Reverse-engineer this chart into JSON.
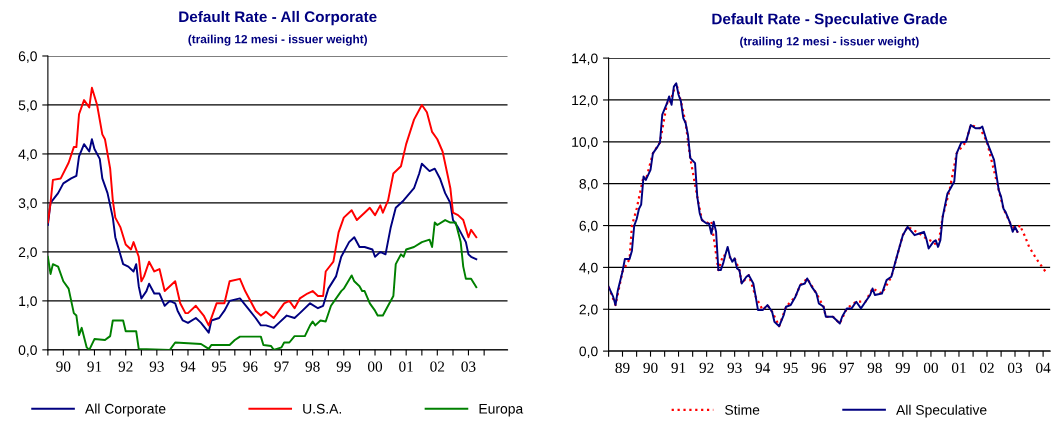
{
  "chart_data": [
    {
      "type": "line",
      "title": "Default Rate - All Corporate",
      "subtitle": "(trailing 12 mesi - issuer weight)",
      "xlim": [
        "1990-01",
        "2004-10"
      ],
      "ylim": [
        0,
        6
      ],
      "yticks": [
        {
          "value": 0,
          "label": "0,0"
        },
        {
          "value": 1,
          "label": "1,0"
        },
        {
          "value": 2,
          "label": "2,0"
        },
        {
          "value": 3,
          "label": "3,0"
        },
        {
          "value": 4,
          "label": "4,0"
        },
        {
          "value": 5,
          "label": "5,0"
        },
        {
          "value": 6,
          "label": "6,0"
        }
      ],
      "xticks": [
        {
          "value": "1990",
          "label": null
        },
        {
          "value": "1990-07",
          "label": "90"
        },
        {
          "value": "1991",
          "label": null
        },
        {
          "value": "1991-07",
          "label": "91"
        },
        {
          "value": "1992",
          "label": null
        },
        {
          "value": "1992-07",
          "label": "92"
        },
        {
          "value": "1993",
          "label": null
        },
        {
          "value": "1993-07",
          "label": "93"
        },
        {
          "value": "1994",
          "label": null
        },
        {
          "value": "1994-07",
          "label": "94"
        },
        {
          "value": "1995",
          "label": null
        },
        {
          "value": "1995-07",
          "label": "95"
        },
        {
          "value": "1996",
          "label": null
        },
        {
          "value": "1996-07",
          "label": "96"
        },
        {
          "value": "1997",
          "label": null
        },
        {
          "value": "1997-07",
          "label": "97"
        },
        {
          "value": "1998",
          "label": null
        },
        {
          "value": "1998-07",
          "label": "98"
        },
        {
          "value": "1999",
          "label": null
        },
        {
          "value": "1999-07",
          "label": "99"
        },
        {
          "value": "2000",
          "label": null
        },
        {
          "value": "2000-07",
          "label": "00"
        },
        {
          "value": "2001",
          "label": null
        },
        {
          "value": "2001-07",
          "label": "01"
        },
        {
          "value": "2002",
          "label": null
        },
        {
          "value": "2002-07",
          "label": "02"
        },
        {
          "value": "2003",
          "label": null
        },
        {
          "value": "2003-07",
          "label": "03"
        },
        {
          "value": "2004",
          "label": null
        }
      ],
      "grid": "y",
      "legend": "bottom",
      "series": [
        {
          "name": "All Corporate",
          "color": "#000080",
          "line_style": "solid",
          "x": [
            "1990-01",
            "1990-02",
            "1990-05",
            "1990-07",
            "1990-10",
            "1990-12",
            "1991-01",
            "1991-03",
            "1991-05",
            "1991-06",
            "1991-07",
            "1991-09",
            "1991-10",
            "1991-12",
            "1992-02",
            "1992-03",
            "1992-06",
            "1992-08",
            "1992-10",
            "1992-11",
            "1992-12",
            "1993-01",
            "1993-03",
            "1993-04",
            "1993-06",
            "1993-08",
            "1993-10",
            "1993-12",
            "1994-02",
            "1994-03",
            "1994-05",
            "1994-07",
            "1994-10",
            "1994-12",
            "1995-03",
            "1995-04",
            "1995-07",
            "1995-09",
            "1995-11",
            "1996-03",
            "1996-06",
            "1996-09",
            "1996-11",
            "1997-01",
            "1997-04",
            "1997-06",
            "1997-09",
            "1997-12",
            "1998-02",
            "1998-06",
            "1998-09",
            "1998-11",
            "1999-01",
            "1999-04",
            "1999-06",
            "1999-09",
            "1999-11",
            "2000-01",
            "2000-03",
            "2000-06",
            "2000-07",
            "2000-09",
            "2000-11",
            "2001-01",
            "2001-03",
            "2001-06",
            "2001-10",
            "2001-12",
            "2002-01",
            "2002-04",
            "2002-06",
            "2002-08",
            "2002-10",
            "2002-12",
            "2003-01",
            "2003-03",
            "2003-06",
            "2003-07",
            "2003-08",
            "2003-10"
          ],
          "values": [
            2.55,
            3.0,
            3.2,
            3.4,
            3.5,
            3.55,
            3.95,
            4.2,
            4.05,
            4.3,
            4.1,
            3.9,
            3.5,
            3.2,
            2.7,
            2.3,
            1.75,
            1.7,
            1.6,
            1.75,
            1.3,
            1.05,
            1.2,
            1.35,
            1.15,
            1.15,
            0.9,
            1.0,
            0.95,
            0.8,
            0.6,
            0.55,
            0.65,
            0.55,
            0.35,
            0.6,
            0.65,
            0.8,
            1.0,
            1.05,
            0.85,
            0.65,
            0.5,
            0.5,
            0.45,
            0.55,
            0.7,
            0.65,
            0.75,
            0.95,
            0.85,
            0.9,
            1.25,
            1.5,
            1.9,
            2.2,
            2.3,
            2.1,
            2.1,
            2.05,
            1.9,
            2.0,
            1.95,
            2.5,
            2.9,
            3.05,
            3.3,
            3.6,
            3.8,
            3.65,
            3.7,
            3.5,
            3.2,
            3.0,
            2.65,
            2.5,
            2.2,
            1.95,
            1.9,
            1.85
          ]
        },
        {
          "name": "U.S.A.",
          "color": "#ff0000",
          "line_style": "solid",
          "x": [
            "1990-01",
            "1990-02",
            "1990-03",
            "1990-06",
            "1990-09",
            "1990-11",
            "1990-12",
            "1991-01",
            "1991-03",
            "1991-05",
            "1991-06",
            "1991-08",
            "1991-10",
            "1991-11",
            "1992-01",
            "1992-02",
            "1992-03",
            "1992-05",
            "1992-07",
            "1992-09",
            "1992-10",
            "1992-12",
            "1993-01",
            "1993-02",
            "1993-04",
            "1993-06",
            "1993-08",
            "1993-10",
            "1994-02",
            "1994-04",
            "1994-06",
            "1994-07",
            "1994-10",
            "1995-01",
            "1995-03",
            "1995-06",
            "1995-09",
            "1995-11",
            "1996-03",
            "1996-05",
            "1996-09",
            "1996-11",
            "1997-01",
            "1997-04",
            "1997-06",
            "1997-08",
            "1997-10",
            "1997-12",
            "1998-02",
            "1998-05",
            "1998-07",
            "1998-09",
            "1998-11",
            "1998-12",
            "1999-03",
            "1999-05",
            "1999-07",
            "1999-10",
            "1999-12",
            "2000-03",
            "2000-05",
            "2000-07",
            "2000-09",
            "2000-10",
            "2000-12",
            "2001-02",
            "2001-05",
            "2001-07",
            "2001-10",
            "2002-01",
            "2002-03",
            "2002-05",
            "2002-07",
            "2002-09",
            "2002-11",
            "2002-12",
            "2003-01",
            "2003-03",
            "2003-05",
            "2003-07",
            "2003-08",
            "2003-10"
          ],
          "values": [
            2.6,
            3.0,
            3.47,
            3.5,
            3.82,
            4.14,
            4.14,
            4.81,
            5.1,
            4.95,
            5.35,
            5.0,
            4.4,
            4.3,
            3.7,
            3.05,
            2.7,
            2.5,
            2.15,
            2.05,
            2.2,
            1.9,
            1.4,
            1.5,
            1.8,
            1.6,
            1.65,
            1.2,
            1.4,
            0.95,
            0.75,
            0.75,
            0.9,
            0.7,
            0.5,
            0.95,
            0.95,
            1.4,
            1.45,
            1.2,
            0.8,
            0.7,
            0.78,
            0.65,
            0.8,
            0.95,
            1.0,
            0.85,
            1.05,
            1.15,
            1.2,
            1.1,
            1.1,
            1.6,
            1.8,
            2.4,
            2.7,
            2.85,
            2.65,
            2.8,
            2.9,
            2.75,
            2.95,
            2.8,
            3.05,
            3.6,
            3.75,
            4.2,
            4.7,
            5.0,
            4.85,
            4.45,
            4.3,
            4.05,
            3.55,
            3.3,
            2.8,
            2.75,
            2.65,
            2.3,
            2.45,
            2.3
          ]
        },
        {
          "name": "Europa",
          "color": "#008000",
          "line_style": "solid",
          "x": [
            "1990-01",
            "1990-02",
            "1990-03",
            "1990-05",
            "1990-07",
            "1990-09",
            "1990-11",
            "1990-12",
            "1991-01",
            "1991-02",
            "1991-04",
            "1991-05",
            "1991-07",
            "1991-11",
            "1992-01",
            "1992-02",
            "1992-06",
            "1992-07",
            "1992-11",
            "1992-12",
            "1993-12",
            "1994-02",
            "1994-12",
            "1995-03",
            "1995-04",
            "1995-11",
            "1996-01",
            "1996-03",
            "1996-11",
            "1996-12",
            "1997-03",
            "1997-04",
            "1997-07",
            "1997-08",
            "1997-10",
            "1997-12",
            "1998-04",
            "1998-06",
            "1998-07",
            "1998-08",
            "1998-10",
            "1998-12",
            "1999-02",
            "1999-06",
            "1999-07",
            "1999-10",
            "1999-11",
            "2000-01",
            "2000-02",
            "2000-03",
            "2000-05",
            "2000-07",
            "2000-08",
            "2000-10",
            "2000-12",
            "2001-02",
            "2001-03",
            "2001-05",
            "2001-06",
            "2001-07",
            "2001-10",
            "2002-01",
            "2002-04",
            "2002-05",
            "2002-06",
            "2002-07",
            "2002-10",
            "2002-12",
            "2003-02",
            "2003-04",
            "2003-05",
            "2003-06",
            "2003-08",
            "2003-10"
          ],
          "values": [
            1.9,
            1.55,
            1.75,
            1.7,
            1.4,
            1.25,
            0.75,
            0.7,
            0.3,
            0.45,
            0.05,
            0.0,
            0.22,
            0.2,
            0.28,
            0.6,
            0.6,
            0.38,
            0.38,
            0.02,
            0.0,
            0.15,
            0.12,
            0.02,
            0.1,
            0.1,
            0.2,
            0.27,
            0.27,
            0.1,
            0.08,
            0.0,
            0.05,
            0.15,
            0.15,
            0.28,
            0.28,
            0.5,
            0.58,
            0.5,
            0.6,
            0.58,
            0.9,
            1.2,
            1.25,
            1.52,
            1.4,
            1.3,
            1.2,
            1.2,
            0.95,
            0.8,
            0.7,
            0.7,
            0.9,
            1.1,
            1.75,
            1.95,
            1.9,
            2.05,
            2.1,
            2.2,
            2.25,
            2.1,
            2.6,
            2.55,
            2.65,
            2.6,
            2.6,
            2.2,
            1.7,
            1.45,
            1.45,
            1.28
          ]
        }
      ]
    },
    {
      "type": "line",
      "title": "Default Rate - Speculative Grade",
      "subtitle": "(trailing 12 mesi - issuer weight)",
      "xlim": [
        "1989-01",
        "2004-10"
      ],
      "ylim": [
        0,
        14
      ],
      "yticks": [
        {
          "value": 0,
          "label": "0,0"
        },
        {
          "value": 2,
          "label": "2,0"
        },
        {
          "value": 4,
          "label": "4,0"
        },
        {
          "value": 6,
          "label": "6,0"
        },
        {
          "value": 8,
          "label": "8,0"
        },
        {
          "value": 10,
          "label": "10,0"
        },
        {
          "value": 12,
          "label": "12,0"
        },
        {
          "value": 14,
          "label": "14,0"
        }
      ],
      "xticks": [
        {
          "value": "1989",
          "label": null
        },
        {
          "value": "1989-07",
          "label": "89"
        },
        {
          "value": "1990",
          "label": null
        },
        {
          "value": "1990-07",
          "label": "90"
        },
        {
          "value": "1991",
          "label": null
        },
        {
          "value": "1991-07",
          "label": "91"
        },
        {
          "value": "1992",
          "label": null
        },
        {
          "value": "1992-07",
          "label": "92"
        },
        {
          "value": "1993",
          "label": null
        },
        {
          "value": "1993-07",
          "label": "93"
        },
        {
          "value": "1994",
          "label": null
        },
        {
          "value": "1994-07",
          "label": "94"
        },
        {
          "value": "1995",
          "label": null
        },
        {
          "value": "1995-07",
          "label": "95"
        },
        {
          "value": "1996",
          "label": null
        },
        {
          "value": "1996-07",
          "label": "96"
        },
        {
          "value": "1997",
          "label": null
        },
        {
          "value": "1997-07",
          "label": "97"
        },
        {
          "value": "1998",
          "label": null
        },
        {
          "value": "1998-07",
          "label": "98"
        },
        {
          "value": "1999",
          "label": null
        },
        {
          "value": "1999-07",
          "label": "99"
        },
        {
          "value": "2000",
          "label": null
        },
        {
          "value": "2000-07",
          "label": "00"
        },
        {
          "value": "2001",
          "label": null
        },
        {
          "value": "2001-07",
          "label": "01"
        },
        {
          "value": "2002",
          "label": null
        },
        {
          "value": "2002-07",
          "label": "02"
        },
        {
          "value": "2003",
          "label": null
        },
        {
          "value": "2003-07",
          "label": "03"
        },
        {
          "value": "2004",
          "label": null
        },
        {
          "value": "2004-07",
          "label": "04"
        }
      ],
      "grid": "y",
      "legend": "bottom",
      "series": [
        {
          "name": "Stime",
          "color": "#ff0000",
          "line_style": "dotted",
          "x": [
            "1989-01",
            "1989-04",
            "1989-07",
            "1989-10",
            "1989-11",
            "1990-01",
            "1990-04",
            "1990-05",
            "1990-08",
            "1990-11",
            "1991-02",
            "1991-03",
            "1991-06",
            "1991-08",
            "1991-10",
            "1991-12",
            "1992-03",
            "1992-05",
            "1992-08",
            "1992-09",
            "1992-12",
            "1993-02",
            "1993-04",
            "1993-07",
            "1993-09",
            "1993-10",
            "1994-01",
            "1994-04",
            "1994-07",
            "1994-09",
            "1994-11",
            "1995-02",
            "1995-05",
            "1995-09",
            "1995-11",
            "1996-02",
            "1996-06",
            "1996-09",
            "1996-10",
            "1997-01",
            "1997-04",
            "1997-07",
            "1997-11",
            "1998-03",
            "1998-06",
            "1998-10",
            "1999-02",
            "1999-07",
            "1999-09",
            "2000-02",
            "2000-05",
            "2000-08",
            "2000-10",
            "2000-12",
            "2001-03",
            "2001-06",
            "2001-10",
            "2001-12",
            "2002-04",
            "2002-07",
            "2002-12",
            "2003-02",
            "2003-05",
            "2003-08",
            "2003-09",
            "2003-11",
            "2004-01",
            "2004-04",
            "2004-06",
            "2004-08"
          ],
          "values": [
            3.07,
            2.2,
            3.8,
            4.4,
            6.0,
            6.8,
            8.34,
            8.18,
            9.45,
            9.97,
            11.85,
            11.77,
            12.8,
            11.93,
            10.9,
            9.22,
            7.38,
            6.26,
            6.1,
            6.18,
            3.87,
            4.59,
            4.5,
            4.43,
            3.87,
            3.23,
            3.63,
            2.6,
            1.96,
            2.2,
            1.88,
            1.19,
            2.12,
            2.6,
            3.15,
            3.47,
            2.75,
            2.12,
            1.64,
            1.64,
            1.32,
            2.04,
            2.36,
            2.36,
            2.99,
            2.75,
            3.55,
            5.54,
            5.94,
            5.62,
            5.38,
            5.22,
            4.98,
            6.42,
            7.7,
            9.45,
            10.0,
            10.8,
            10.65,
            10.0,
            7.7,
            6.8,
            6.1,
            5.7,
            6.02,
            5.54,
            4.98,
            4.43,
            4.11,
            3.8
          ]
        },
        {
          "name": "All Speculative",
          "color": "#000080",
          "line_style": "solid",
          "x": [
            "1989-01",
            "1989-03",
            "1989-04",
            "1989-05",
            "1989-07",
            "1989-08",
            "1989-10",
            "1989-11",
            "1989-12",
            "1990-01",
            "1990-02",
            "1990-03",
            "1990-04",
            "1990-05",
            "1990-07",
            "1990-08",
            "1990-10",
            "1990-11",
            "1990-12",
            "1991-02",
            "1991-03",
            "1991-04",
            "1991-05",
            "1991-06",
            "1991-07",
            "1991-08",
            "1991-09",
            "1991-10",
            "1991-11",
            "1991-12",
            "1992-02",
            "1992-03",
            "1992-04",
            "1992-05",
            "1992-07",
            "1992-08",
            "1992-09",
            "1992-10",
            "1992-11",
            "1992-12",
            "1993-01",
            "1993-02",
            "1993-03",
            "1993-04",
            "1993-05",
            "1993-06",
            "1993-07",
            "1993-08",
            "1993-09",
            "1993-10",
            "1993-12",
            "1994-01",
            "1994-03",
            "1994-04",
            "1994-05",
            "1994-07",
            "1994-09",
            "1994-11",
            "1994-12",
            "1995-02",
            "1995-04",
            "1995-05",
            "1995-07",
            "1995-09",
            "1995-11",
            "1996-01",
            "1996-02",
            "1996-04",
            "1996-06",
            "1996-07",
            "1996-09",
            "1996-10",
            "1997-01",
            "1997-04",
            "1997-05",
            "1997-07",
            "1997-09",
            "1997-11",
            "1998-01",
            "1998-03",
            "1998-05",
            "1998-06",
            "1998-07",
            "1998-10",
            "1998-12",
            "1999-02",
            "1999-05",
            "1999-07",
            "1999-09",
            "1999-12",
            "2000-02",
            "2000-04",
            "2000-05",
            "2000-06",
            "2000-08",
            "2000-09",
            "2000-10",
            "2000-11",
            "2000-12",
            "2001-02",
            "2001-03",
            "2001-05",
            "2001-06",
            "2001-08",
            "2001-10",
            "2001-12",
            "2002-02",
            "2002-04",
            "2002-05",
            "2002-07",
            "2002-10",
            "2002-12",
            "2003-01",
            "2003-02",
            "2003-03",
            "2003-05",
            "2003-06",
            "2003-07",
            "2003-08"
          ],
          "values": [
            3.07,
            2.6,
            2.2,
            2.9,
            3.8,
            4.4,
            4.4,
            4.8,
            6.0,
            6.3,
            6.8,
            7.0,
            8.34,
            8.18,
            8.66,
            9.45,
            9.77,
            9.97,
            11.3,
            11.85,
            12.17,
            11.77,
            12.64,
            12.8,
            12.25,
            11.93,
            11.13,
            10.9,
            10.33,
            9.22,
            8.98,
            7.38,
            6.6,
            6.26,
            6.1,
            6.1,
            5.6,
            6.18,
            5.7,
            3.87,
            3.87,
            4.19,
            4.59,
            4.98,
            4.5,
            4.27,
            4.43,
            3.95,
            3.87,
            3.23,
            3.55,
            3.63,
            3.23,
            2.6,
            1.96,
            1.96,
            2.2,
            1.88,
            1.4,
            1.19,
            1.72,
            2.12,
            2.2,
            2.6,
            3.15,
            3.23,
            3.47,
            3.07,
            2.75,
            2.28,
            2.12,
            1.64,
            1.64,
            1.32,
            1.64,
            2.04,
            2.04,
            2.36,
            2.04,
            2.36,
            2.68,
            2.99,
            2.68,
            2.75,
            3.39,
            3.55,
            4.75,
            5.54,
            5.94,
            5.54,
            5.62,
            5.7,
            5.38,
            4.9,
            5.22,
            5.3,
            4.98,
            5.3,
            6.42,
            7.53,
            7.7,
            8.1,
            9.45,
            9.97,
            10.0,
            10.8,
            10.65,
            10.65,
            10.73,
            10.0,
            9.14,
            7.7,
            7.37,
            6.8,
            6.64,
            6.1,
            5.7,
            5.94,
            5.7
          ]
        }
      ]
    }
  ]
}
